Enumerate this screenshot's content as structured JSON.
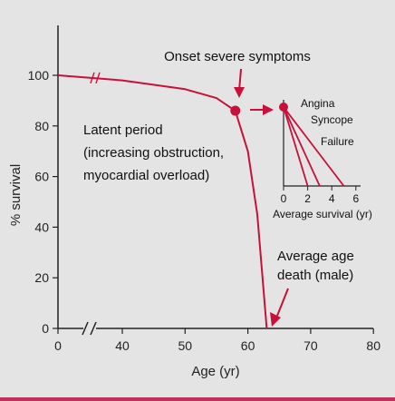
{
  "chart_data": {
    "type": "line",
    "xlabel": "Age (yr)",
    "ylabel": "% survival",
    "xlim": [
      0,
      80
    ],
    "ylim": [
      0,
      100
    ],
    "x_ticks": [
      0,
      40,
      50,
      60,
      70,
      80
    ],
    "y_ticks": [
      0,
      20,
      40,
      60,
      80,
      100
    ],
    "axis_break": "between 0 and 40 on x axis",
    "series": [
      {
        "points": [
          {
            "x": 0,
            "y": 100
          },
          {
            "x": 40,
            "y": 98
          },
          {
            "x": 50,
            "y": 94.5
          },
          {
            "x": 55,
            "y": 91
          },
          {
            "x": 58,
            "y": 86
          },
          {
            "x": 60,
            "y": 70
          },
          {
            "x": 61.5,
            "y": 45
          },
          {
            "x": 63,
            "y": 0
          }
        ]
      }
    ],
    "annotations": {
      "onset": "Onset severe symptoms",
      "latent_line1": "Latent period",
      "latent_line2": "(increasing obstruction,",
      "latent_line3": "myocardial overload)",
      "death_line1": "Average age",
      "death_line2": "death (male)"
    },
    "inset": {
      "xlabel": "Average survival (yr)",
      "x_ticks": [
        0,
        2,
        4,
        6
      ],
      "lines": [
        {
          "label": "Angina",
          "end_x": 5
        },
        {
          "label": "Syncope",
          "end_x": 3
        },
        {
          "label": "Failure",
          "end_x": 2
        }
      ]
    },
    "colors": {
      "curve": "#c8103a",
      "axis": "#222222",
      "background": "#e4e4e4"
    }
  }
}
